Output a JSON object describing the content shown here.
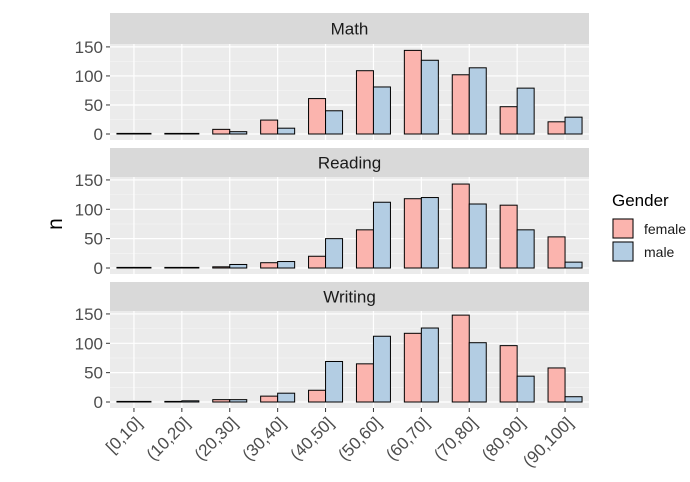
{
  "chart_data": {
    "type": "bar",
    "ylabel": "n",
    "xlabel": "",
    "categories": [
      "[0,10]",
      "(10,20]",
      "(20,30]",
      "(30,40]",
      "(40,50]",
      "(50,60]",
      "(60,70]",
      "(70,80]",
      "(80,90]",
      "(90,100]"
    ],
    "ylim": [
      0,
      155
    ],
    "yticks": [
      0,
      50,
      100,
      150
    ],
    "grid": true,
    "legend": {
      "title": "Gender",
      "position": "right",
      "entries": [
        {
          "name": "female",
          "color": "#FBB4AE"
        },
        {
          "name": "male",
          "color": "#B3CDE3"
        }
      ]
    },
    "panels": [
      {
        "title": "Math",
        "series": [
          {
            "name": "female",
            "values": [
              1,
              1,
              8,
              24,
              61,
              109,
              144,
              102,
              47,
              21
            ]
          },
          {
            "name": "male",
            "values": [
              1,
              1,
              4,
              10,
              40,
              81,
              127,
              114,
              79,
              29
            ]
          }
        ]
      },
      {
        "title": "Reading",
        "series": [
          {
            "name": "female",
            "values": [
              0,
              0,
              2,
              9,
              20,
              65,
              118,
              143,
              107,
              53
            ]
          },
          {
            "name": "male",
            "values": [
              0,
              1,
              6,
              11,
              50,
              112,
              120,
              109,
              65,
              10
            ]
          }
        ]
      },
      {
        "title": "Writing",
        "series": [
          {
            "name": "female",
            "values": [
              1,
              1,
              4,
              10,
              20,
              65,
              117,
              148,
              96,
              58
            ]
          },
          {
            "name": "male",
            "values": [
              1,
              2,
              4,
              15,
              69,
              112,
              126,
              101,
              44,
              9
            ]
          }
        ]
      }
    ]
  }
}
